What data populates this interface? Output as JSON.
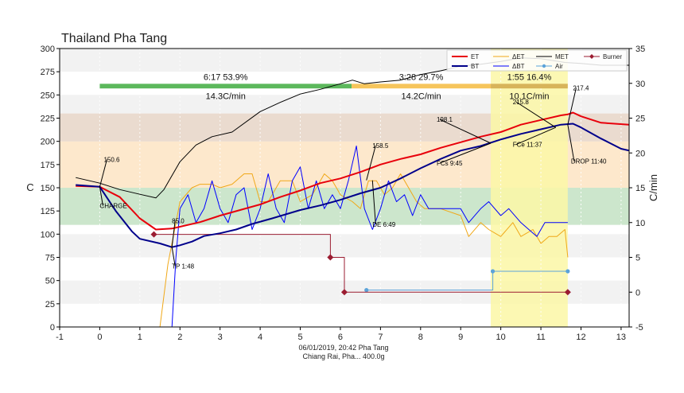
{
  "chart_data": {
    "type": "line",
    "title": "Thailand Pha Tang",
    "xlim": [
      -1,
      13.2
    ],
    "ylim": [
      0,
      300
    ],
    "y2lim": [
      -5,
      35
    ],
    "ylabel": "C",
    "y2label": "C/min",
    "xticks": [
      -1,
      0,
      1,
      2,
      3,
      4,
      5,
      6,
      7,
      8,
      9,
      10,
      11,
      12,
      13
    ],
    "yticks": [
      0,
      25,
      50,
      75,
      100,
      125,
      150,
      175,
      200,
      225,
      250,
      275,
      300
    ],
    "y2ticks": [
      -5,
      0,
      5,
      10,
      15,
      20,
      25,
      30,
      35
    ],
    "footer": [
      "06/01/2019, 20:42   Pha Tang",
      "Chiang Rai, Pha...   400.0g"
    ],
    "colors": {
      "ET": "#e8000b",
      "BT": "#00008b",
      "dET": "#f0a818",
      "dBT": "#0000ff",
      "MET": "#000000",
      "Burner": "#9b1c31",
      "Air": "#5ba3d9",
      "phase_dry": "#5cb85c",
      "phase_maillard": "#f6c55c",
      "phase_dev": "#d8b45a"
    },
    "legend": {
      "position": "top-right",
      "entries": [
        {
          "key": "ET",
          "label": "ET"
        },
        {
          "key": "BT",
          "label": "BT"
        },
        {
          "key": "dET",
          "label": "ΔET"
        },
        {
          "key": "dBT",
          "label": "ΔBT"
        },
        {
          "key": "MET",
          "label": "MET"
        },
        {
          "key": "Air",
          "label": "Air"
        },
        {
          "key": "Burner",
          "label": "Burner"
        }
      ]
    },
    "bands": [
      {
        "y0": 110,
        "y1": 150,
        "color": "#cce6cc"
      },
      {
        "y0": 150,
        "y1": 200,
        "color": "#fde8cc"
      },
      {
        "y0": 200,
        "y1": 230,
        "color": "#eadbcf"
      }
    ],
    "dev_window": {
      "x0": 9.75,
      "x1": 11.67,
      "color": "#fbf7a6"
    },
    "phases": [
      {
        "x0": 0,
        "x1": 6.28,
        "color": "#5cb85c",
        "label": "6:17  53.9%",
        "rate": "14.3C/min"
      },
      {
        "x0": 6.28,
        "x1": 9.75,
        "color": "#f6c55c",
        "label": "3:28  29.7%",
        "rate": "14.2C/min"
      },
      {
        "x0": 9.75,
        "x1": 11.67,
        "color": "#d8b45a",
        "label": "1:55  16.4%",
        "rate": "10.1C/min"
      }
    ],
    "series": [
      {
        "name": "ET",
        "key": "ET",
        "axis": "y",
        "width": 2,
        "points": [
          [
            -0.6,
            152
          ],
          [
            0,
            151
          ],
          [
            0.5,
            140
          ],
          [
            1,
            117
          ],
          [
            1.4,
            105
          ],
          [
            1.8,
            106
          ],
          [
            2,
            108
          ],
          [
            2.5,
            113
          ],
          [
            3,
            120
          ],
          [
            3.5,
            126
          ],
          [
            4,
            132
          ],
          [
            4.5,
            140
          ],
          [
            5,
            147
          ],
          [
            5.5,
            155
          ],
          [
            6,
            160
          ],
          [
            6.5,
            167
          ],
          [
            7,
            175
          ],
          [
            7.5,
            181
          ],
          [
            8,
            186
          ],
          [
            8.5,
            193
          ],
          [
            9,
            199
          ],
          [
            9.5,
            205
          ],
          [
            10,
            210
          ],
          [
            10.5,
            218
          ],
          [
            11,
            223
          ],
          [
            11.5,
            228
          ],
          [
            11.67,
            229
          ],
          [
            11.8,
            231
          ],
          [
            12,
            227
          ],
          [
            12.5,
            220
          ],
          [
            13.2,
            218
          ]
        ]
      },
      {
        "name": "BT",
        "key": "BT",
        "axis": "y",
        "width": 2,
        "points": [
          [
            -0.6,
            153
          ],
          [
            0,
            151
          ],
          [
            0.4,
            125
          ],
          [
            0.8,
            103
          ],
          [
            1,
            95
          ],
          [
            1.5,
            90
          ],
          [
            1.8,
            86
          ],
          [
            2,
            88
          ],
          [
            2.3,
            92
          ],
          [
            2.6,
            98
          ],
          [
            3,
            101
          ],
          [
            3.4,
            105
          ],
          [
            3.8,
            111
          ],
          [
            4.3,
            117
          ],
          [
            5,
            126
          ],
          [
            5.5,
            131
          ],
          [
            6,
            137
          ],
          [
            6.5,
            144
          ],
          [
            7,
            150
          ],
          [
            7.5,
            160
          ],
          [
            8,
            171
          ],
          [
            8.5,
            181
          ],
          [
            9,
            190
          ],
          [
            9.5,
            195
          ],
          [
            10,
            202
          ],
          [
            10.5,
            208
          ],
          [
            11,
            213
          ],
          [
            11.5,
            218
          ],
          [
            11.8,
            219
          ],
          [
            12,
            215
          ],
          [
            12.5,
            203
          ],
          [
            13,
            192
          ],
          [
            13.2,
            190
          ]
        ]
      },
      {
        "name": "MET",
        "key": "MET",
        "axis": "y",
        "width": 1,
        "points": [
          [
            -0.6,
            161
          ],
          [
            0,
            155
          ],
          [
            0.5,
            148
          ],
          [
            1,
            143
          ],
          [
            1.4,
            139
          ],
          [
            1.6,
            148
          ],
          [
            2,
            178
          ],
          [
            2.4,
            196
          ],
          [
            2.8,
            205
          ],
          [
            3.3,
            210
          ],
          [
            4,
            232
          ],
          [
            4.5,
            242
          ],
          [
            5,
            251
          ],
          [
            5.5,
            256
          ],
          [
            6,
            262
          ],
          [
            6.3,
            266
          ],
          [
            6.6,
            262
          ],
          [
            7,
            264
          ],
          [
            7.5,
            266
          ],
          [
            8,
            272
          ],
          [
            8.5,
            276
          ],
          [
            9,
            281
          ],
          [
            9.5,
            283
          ],
          [
            10,
            286
          ],
          [
            10.5,
            290
          ],
          [
            11,
            289
          ],
          [
            11.6,
            285
          ],
          [
            12,
            284
          ],
          [
            12.5,
            282
          ],
          [
            13.2,
            282
          ]
        ]
      },
      {
        "name": "ΔET",
        "key": "dET",
        "axis": "y2",
        "width": 1,
        "points": [
          [
            1.5,
            -5
          ],
          [
            1.7,
            4
          ],
          [
            2,
            13
          ],
          [
            2.3,
            15
          ],
          [
            2.5,
            15.5
          ],
          [
            2.8,
            15.5
          ],
          [
            3,
            15
          ],
          [
            3.3,
            15.5
          ],
          [
            3.6,
            17
          ],
          [
            3.8,
            17
          ],
          [
            4,
            13
          ],
          [
            4.2,
            13
          ],
          [
            4.5,
            16
          ],
          [
            4.8,
            16
          ],
          [
            5,
            13
          ],
          [
            5.3,
            14
          ],
          [
            5.6,
            17
          ],
          [
            5.8,
            16
          ],
          [
            6,
            14
          ],
          [
            6.3,
            13
          ],
          [
            6.5,
            12
          ],
          [
            6.7,
            16
          ],
          [
            6.9,
            16
          ],
          [
            7.1,
            14
          ],
          [
            7.3,
            15
          ],
          [
            7.5,
            17
          ],
          [
            7.7,
            15
          ],
          [
            7.9,
            13
          ],
          [
            8.1,
            12
          ],
          [
            8.5,
            12
          ],
          [
            9,
            11
          ],
          [
            9.2,
            8
          ],
          [
            9.5,
            10
          ],
          [
            9.7,
            9
          ],
          [
            10,
            8
          ],
          [
            10.3,
            10
          ],
          [
            10.5,
            8
          ],
          [
            10.8,
            9
          ],
          [
            11,
            7
          ],
          [
            11.2,
            8
          ],
          [
            11.4,
            8
          ],
          [
            11.6,
            9
          ],
          [
            11.67,
            5
          ]
        ]
      },
      {
        "name": "ΔBT",
        "key": "dBT",
        "axis": "y2",
        "width": 1,
        "points": [
          [
            1.8,
            -5
          ],
          [
            1.9,
            5
          ],
          [
            2,
            12
          ],
          [
            2.2,
            14
          ],
          [
            2.4,
            10
          ],
          [
            2.6,
            12
          ],
          [
            2.8,
            16
          ],
          [
            3,
            12
          ],
          [
            3.2,
            10
          ],
          [
            3.4,
            14
          ],
          [
            3.6,
            15
          ],
          [
            3.8,
            9
          ],
          [
            4,
            12
          ],
          [
            4.2,
            17
          ],
          [
            4.4,
            12
          ],
          [
            4.6,
            10
          ],
          [
            4.8,
            16
          ],
          [
            5,
            18
          ],
          [
            5.2,
            12
          ],
          [
            5.4,
            16
          ],
          [
            5.6,
            12
          ],
          [
            5.8,
            14
          ],
          [
            6,
            12
          ],
          [
            6.2,
            16
          ],
          [
            6.4,
            21
          ],
          [
            6.6,
            12
          ],
          [
            6.8,
            9
          ],
          [
            7,
            12
          ],
          [
            7.2,
            16
          ],
          [
            7.4,
            13
          ],
          [
            7.6,
            14
          ],
          [
            7.8,
            11
          ],
          [
            8,
            14
          ],
          [
            8.2,
            12
          ],
          [
            8.5,
            12
          ],
          [
            8.8,
            12
          ],
          [
            9,
            12
          ],
          [
            9.2,
            10
          ],
          [
            9.5,
            12
          ],
          [
            9.7,
            13
          ],
          [
            10,
            11
          ],
          [
            10.2,
            12
          ],
          [
            10.5,
            10
          ],
          [
            10.7,
            9
          ],
          [
            10.9,
            8
          ],
          [
            11.1,
            10
          ],
          [
            11.3,
            10
          ],
          [
            11.5,
            10
          ],
          [
            11.67,
            10
          ]
        ]
      },
      {
        "name": "Burner",
        "key": "Burner",
        "axis": "y2",
        "width": 1,
        "step": true,
        "markers": "diamond",
        "points": [
          [
            1.35,
            8.3
          ],
          [
            5.75,
            8.3
          ],
          [
            5.75,
            5
          ],
          [
            6.1,
            5
          ],
          [
            6.1,
            0
          ],
          [
            11.67,
            0
          ]
        ],
        "marker_points": [
          [
            1.35,
            8.3
          ],
          [
            5.75,
            5
          ],
          [
            6.1,
            0
          ],
          [
            11.67,
            0
          ]
        ]
      },
      {
        "name": "Air",
        "key": "Air",
        "axis": "y2",
        "width": 1,
        "step": true,
        "markers": "circle",
        "points": [
          [
            6.65,
            0.3
          ],
          [
            9.8,
            0.3
          ],
          [
            9.8,
            3
          ],
          [
            11.67,
            3
          ]
        ],
        "marker_points": [
          [
            6.65,
            0.3
          ],
          [
            9.8,
            3
          ],
          [
            11.67,
            3
          ]
        ]
      }
    ],
    "annotations": [
      {
        "text": "150.6",
        "x": 0,
        "y": 151,
        "tx": 0.1,
        "ty": 178,
        "anchor": "start"
      },
      {
        "text": "CHARGE",
        "x": 0,
        "y": 151,
        "tx": 0.0,
        "ty": 128,
        "anchor": "start"
      },
      {
        "text": "85.0",
        "x": 1.8,
        "y": 86,
        "tx": 1.8,
        "ty": 112,
        "anchor": "start"
      },
      {
        "text": "TP 1:48",
        "x": 1.8,
        "y": 86,
        "tx": 1.8,
        "ty": 63,
        "anchor": "start"
      },
      {
        "text": "158.5",
        "x": 6.65,
        "y": 158,
        "tx": 6.8,
        "ty": 193,
        "anchor": "start"
      },
      {
        "text": "DE 6:49",
        "x": 6.8,
        "y": 158,
        "tx": 6.8,
        "ty": 108,
        "anchor": "start"
      },
      {
        "text": "198.1",
        "x": 9.75,
        "y": 198,
        "tx": 8.4,
        "ty": 221,
        "anchor": "start"
      },
      {
        "text": "FCs 9:45",
        "x": 9.75,
        "y": 198,
        "tx": 8.4,
        "ty": 174,
        "anchor": "start"
      },
      {
        "text": "215.8",
        "x": 11.37,
        "y": 215,
        "tx": 10.3,
        "ty": 240,
        "anchor": "start"
      },
      {
        "text": "FCe 11:37",
        "x": 11.37,
        "y": 215,
        "tx": 10.3,
        "ty": 194,
        "anchor": "start"
      },
      {
        "text": "217.4",
        "x": 11.67,
        "y": 218,
        "tx": 11.8,
        "ty": 255,
        "anchor": "start"
      },
      {
        "text": "DROP 11:40",
        "x": 11.67,
        "y": 218,
        "tx": 11.75,
        "ty": 176,
        "anchor": "start"
      }
    ]
  }
}
